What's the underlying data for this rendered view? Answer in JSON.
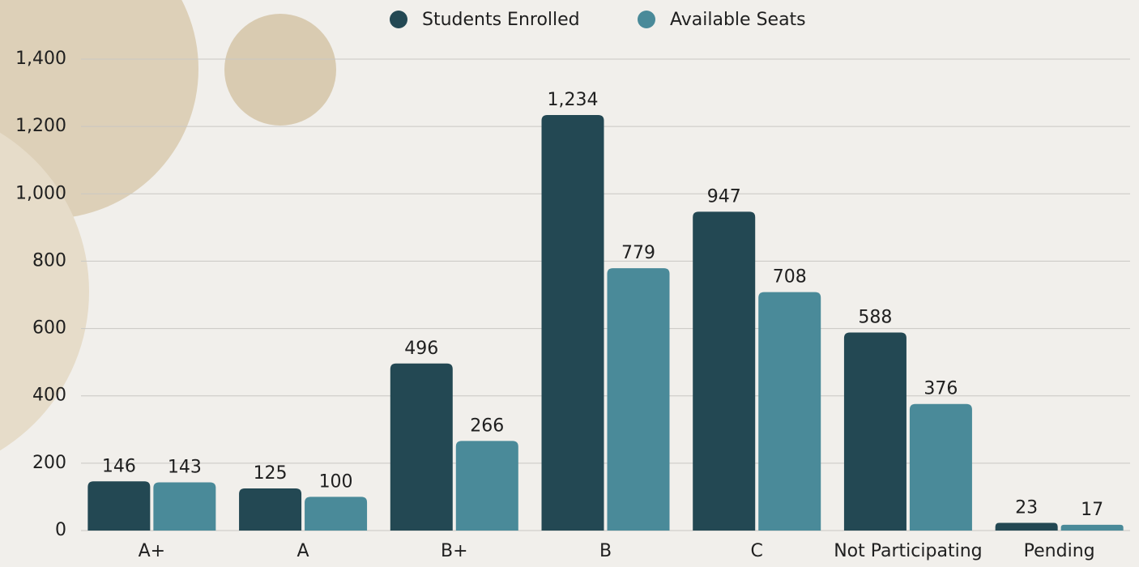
{
  "chart_data": {
    "type": "bar",
    "categories": [
      "A+",
      "A",
      "B+",
      "B",
      "C",
      "Not Participating",
      "Pending"
    ],
    "series": [
      {
        "name": "Students Enrolled",
        "color": "#234853",
        "values": [
          146,
          125,
          496,
          1234,
          947,
          588,
          23
        ],
        "value_labels": [
          "146",
          "125",
          "496",
          "1,234",
          "947",
          "588",
          "23"
        ]
      },
      {
        "name": "Available Seats",
        "color": "#4a8a99",
        "values": [
          143,
          100,
          266,
          779,
          708,
          376,
          17
        ]
      }
    ],
    "ylim": [
      0,
      1400
    ],
    "yticks": [
      0,
      200,
      400,
      600,
      800,
      {
        "value": 1000,
        "label": "1,000"
      },
      {
        "value": 1200,
        "label": "1,200"
      },
      {
        "value": 1400,
        "label": "1,400"
      }
    ],
    "grid": true,
    "legend": "top"
  }
}
